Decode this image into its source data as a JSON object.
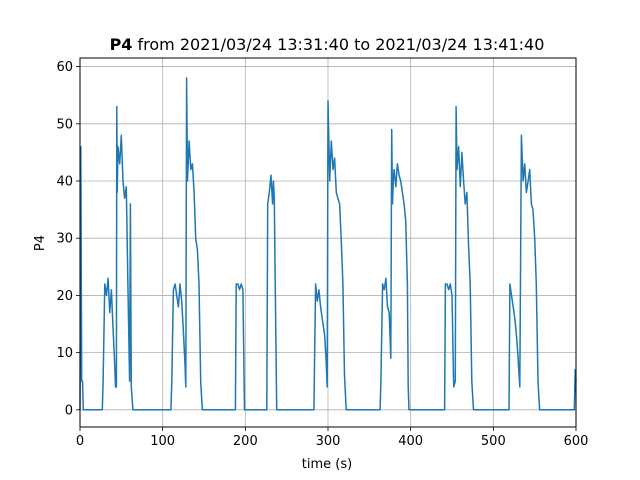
{
  "chart_data": {
    "type": "line",
    "title_bold": "P4",
    "title_rest": " from 2021/03/24 13:31:40 to 2021/03/24 13:41:40",
    "xlabel": "time (s)",
    "ylabel": "P4",
    "xlim": [
      0,
      600
    ],
    "ylim": [
      -3,
      61.5
    ],
    "xticks": [
      0,
      100,
      200,
      300,
      400,
      500,
      600
    ],
    "yticks": [
      0,
      10,
      20,
      30,
      40,
      50,
      60
    ],
    "grid": true,
    "line_color": "#1f77b4",
    "series": [
      {
        "x": [
          0,
          1,
          2,
          3,
          4,
          5,
          8,
          27,
          28,
          30,
          32,
          34,
          36,
          38,
          40,
          42,
          43,
          44,
          44.5,
          45,
          46,
          48,
          50,
          52,
          54,
          56,
          58,
          60,
          61,
          62,
          64,
          66,
          110,
          111,
          113,
          115,
          117,
          119,
          121,
          123,
          125,
          127,
          128,
          129,
          130,
          132,
          134,
          136,
          138,
          140,
          142,
          144,
          146,
          148,
          150,
          152,
          188,
          189,
          191,
          193,
          195,
          197,
          199,
          226,
          227,
          229,
          231,
          233,
          234,
          235,
          236,
          238,
          282,
          283,
          285,
          287,
          289,
          291,
          293,
          296,
          298,
          299,
          300,
          302,
          304,
          306,
          308,
          310,
          312,
          314,
          316,
          318,
          320,
          322,
          363,
          364,
          366,
          368,
          370,
          372,
          374,
          376,
          377,
          378,
          379,
          380,
          382,
          384,
          386,
          388,
          390,
          392,
          394,
          396,
          397,
          398,
          400,
          441,
          442,
          444,
          446,
          448,
          450,
          452,
          454,
          455,
          456,
          458,
          460,
          462,
          464,
          466,
          468,
          470,
          472,
          474,
          476,
          478,
          480,
          519,
          520,
          522,
          524,
          526,
          528,
          530,
          532,
          534,
          536,
          538,
          540,
          542,
          544,
          546,
          548,
          550,
          552,
          554,
          556,
          558,
          560,
          598,
          599,
          600
        ],
        "y": [
          0,
          46,
          5,
          5,
          0,
          0,
          0,
          0,
          5,
          22,
          20,
          23,
          17,
          21,
          14,
          8,
          4,
          4,
          53,
          38,
          46,
          43,
          48,
          40,
          37,
          39,
          22,
          5,
          36,
          4,
          0,
          0,
          0,
          5,
          21,
          22,
          20,
          18,
          22,
          19,
          14,
          8,
          4,
          58,
          40,
          47,
          42,
          43,
          38,
          30,
          28,
          22,
          5,
          0,
          0,
          0,
          0,
          22,
          22,
          21,
          22,
          21,
          0,
          0,
          36,
          38,
          41,
          36,
          40,
          37,
          24,
          0,
          0,
          0,
          22,
          19,
          21,
          18,
          16,
          13,
          8,
          4,
          54,
          40,
          47,
          42,
          44,
          38,
          37,
          36,
          30,
          22,
          6,
          0,
          0,
          5,
          22,
          21,
          23,
          18,
          17,
          9,
          49,
          36,
          40,
          42,
          39,
          43,
          41,
          40,
          38,
          36,
          33,
          22,
          4,
          0,
          0,
          0,
          22,
          22,
          21,
          22,
          20,
          4,
          5,
          53,
          42,
          46,
          39,
          45,
          40,
          36,
          38,
          29,
          22,
          5,
          0,
          0,
          0,
          0,
          22,
          20,
          18,
          16,
          13,
          9,
          4,
          48,
          40,
          43,
          38,
          40,
          42,
          36,
          35,
          30,
          22,
          5,
          0,
          0,
          0,
          0,
          7,
          5
        ]
      }
    ]
  }
}
